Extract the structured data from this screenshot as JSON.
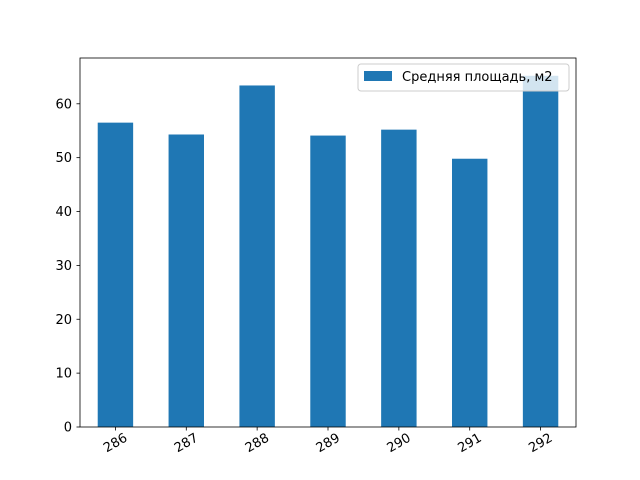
{
  "chart_data": {
    "type": "bar",
    "categories": [
      "286",
      "287",
      "288",
      "289",
      "290",
      "291",
      "292"
    ],
    "series": [
      {
        "name": "Средняя площадь, м2",
        "values": [
          56.5,
          54.3,
          63.4,
          54.1,
          55.2,
          49.8,
          65.2
        ],
        "color": "#1f77b4"
      }
    ],
    "title": "",
    "xlabel": "",
    "ylabel": "",
    "ylim": [
      0,
      68.5
    ],
    "yticks": [
      0,
      10,
      20,
      30,
      40,
      50,
      60
    ],
    "x_tick_rotation_deg": 30,
    "grid": false,
    "legend_position": "top-right"
  }
}
